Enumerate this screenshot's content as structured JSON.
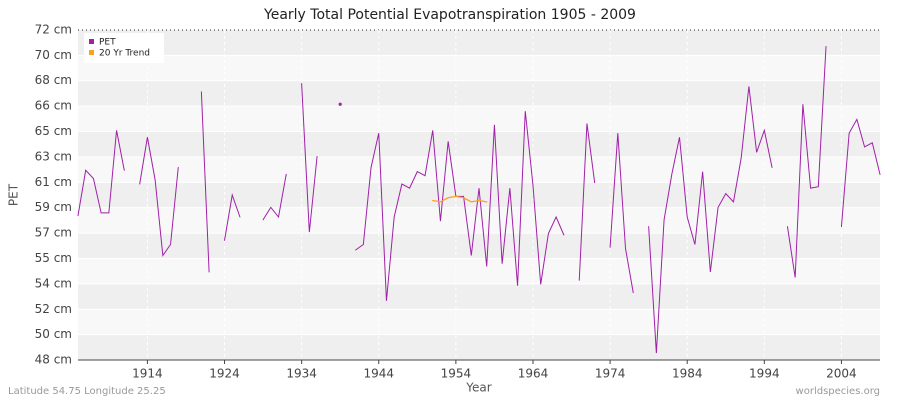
{
  "chart_data": {
    "type": "line",
    "title": "Yearly Total Potential Evapotranspiration 1905 - 2009",
    "x_label": "Year",
    "y_label": "PET",
    "location": "Latitude 54.75 Longitude 25.25",
    "source": "worldspecies.org",
    "legend": "upper left",
    "grid": true,
    "xlim": [
      1905,
      2009
    ],
    "ylim": [
      48,
      72
    ],
    "xticks": [
      1914,
      1924,
      1934,
      1944,
      1954,
      1964,
      1974,
      1984,
      1994,
      2004
    ],
    "yticks": [
      {
        "value": 48,
        "label": "48 cm"
      },
      {
        "value": 49.85,
        "label": "50 cm"
      },
      {
        "value": 51.69,
        "label": "52 cm"
      },
      {
        "value": 53.54,
        "label": "54 cm"
      },
      {
        "value": 55.38,
        "label": "55 cm"
      },
      {
        "value": 57.23,
        "label": "57 cm"
      },
      {
        "value": 59.08,
        "label": "59 cm"
      },
      {
        "value": 60.92,
        "label": "61 cm"
      },
      {
        "value": 62.77,
        "label": "63 cm"
      },
      {
        "value": 64.62,
        "label": "65 cm"
      },
      {
        "value": 66.46,
        "label": "66 cm"
      },
      {
        "value": 68.31,
        "label": "68 cm"
      },
      {
        "value": 70.15,
        "label": "70 cm"
      },
      {
        "value": 72,
        "label": "72 cm"
      }
    ],
    "x": [
      1905,
      1906,
      1907,
      1908,
      1909,
      1910,
      1911,
      1912,
      1913,
      1914,
      1915,
      1916,
      1917,
      1918,
      1919,
      1920,
      1921,
      1922,
      1923,
      1924,
      1925,
      1926,
      1927,
      1928,
      1929,
      1930,
      1931,
      1932,
      1933,
      1934,
      1935,
      1936,
      1937,
      1938,
      1939,
      1940,
      1941,
      1942,
      1943,
      1944,
      1945,
      1946,
      1947,
      1948,
      1949,
      1950,
      1951,
      1952,
      1953,
      1954,
      1955,
      1956,
      1957,
      1958,
      1959,
      1960,
      1961,
      1962,
      1963,
      1964,
      1965,
      1966,
      1967,
      1968,
      1969,
      1970,
      1971,
      1972,
      1973,
      1974,
      1975,
      1976,
      1977,
      1978,
      1979,
      1980,
      1981,
      1982,
      1983,
      1984,
      1985,
      1986,
      1987,
      1988,
      1989,
      1990,
      1991,
      1992,
      1993,
      1994,
      1995,
      1996,
      1997,
      1998,
      1999,
      2000,
      2001,
      2002,
      2003,
      2004,
      2005,
      2006,
      2007,
      2008,
      2009
    ],
    "series": [
      {
        "name": "PET",
        "color": "#a020a8",
        "values": [
          58.5,
          61.8,
          61.2,
          58.7,
          58.7,
          64.7,
          61.8,
          null,
          60.8,
          64.2,
          61.1,
          55.6,
          56.4,
          62.0,
          null,
          null,
          67.5,
          54.4,
          null,
          56.7,
          60.0,
          58.4,
          null,
          null,
          58.2,
          59.1,
          58.4,
          61.5,
          null,
          68.1,
          57.3,
          62.8,
          null,
          null,
          66.6,
          null,
          56.0,
          56.4,
          62.0,
          64.5,
          52.3,
          58.4,
          60.8,
          60.5,
          61.7,
          61.4,
          64.7,
          58.1,
          63.9,
          59.9,
          59.9,
          55.6,
          60.5,
          54.8,
          65.1,
          55.0,
          60.5,
          53.4,
          66.1,
          60.7,
          53.5,
          57.2,
          58.4,
          57.1,
          null,
          53.8,
          65.2,
          60.9,
          null,
          56.2,
          64.5,
          56.1,
          52.9,
          null,
          57.7,
          48.5,
          58.2,
          61.5,
          64.2,
          58.4,
          56.4,
          61.7,
          54.4,
          59.1,
          60.1,
          59.5,
          62.7,
          67.9,
          63.1,
          64.7,
          62.0,
          null,
          57.7,
          54.0,
          66.6,
          60.5,
          60.6,
          70.8,
          null,
          57.7,
          64.5,
          65.5,
          63.5,
          63.8,
          61.5
        ]
      },
      {
        "name": "20 Yr Trend",
        "color": "#ffa020",
        "values": [
          null,
          null,
          null,
          null,
          null,
          null,
          null,
          null,
          null,
          null,
          null,
          null,
          null,
          null,
          null,
          null,
          null,
          null,
          null,
          null,
          null,
          null,
          null,
          null,
          null,
          null,
          null,
          null,
          null,
          null,
          null,
          null,
          null,
          null,
          null,
          null,
          null,
          null,
          null,
          null,
          null,
          null,
          null,
          null,
          null,
          null,
          59.6,
          59.5,
          59.8,
          59.9,
          59.8,
          59.5,
          59.6,
          59.5,
          null,
          null,
          null,
          null,
          null,
          null,
          null,
          null,
          null,
          null,
          null,
          null,
          null,
          null,
          null,
          null,
          null,
          null,
          null,
          null,
          null,
          null,
          null,
          null,
          null,
          null,
          null,
          null,
          null,
          null,
          null,
          null,
          null,
          null,
          null,
          null,
          null,
          null,
          null,
          null,
          null,
          null,
          null,
          null,
          null,
          null,
          null,
          null,
          null,
          null,
          null
        ]
      }
    ]
  }
}
